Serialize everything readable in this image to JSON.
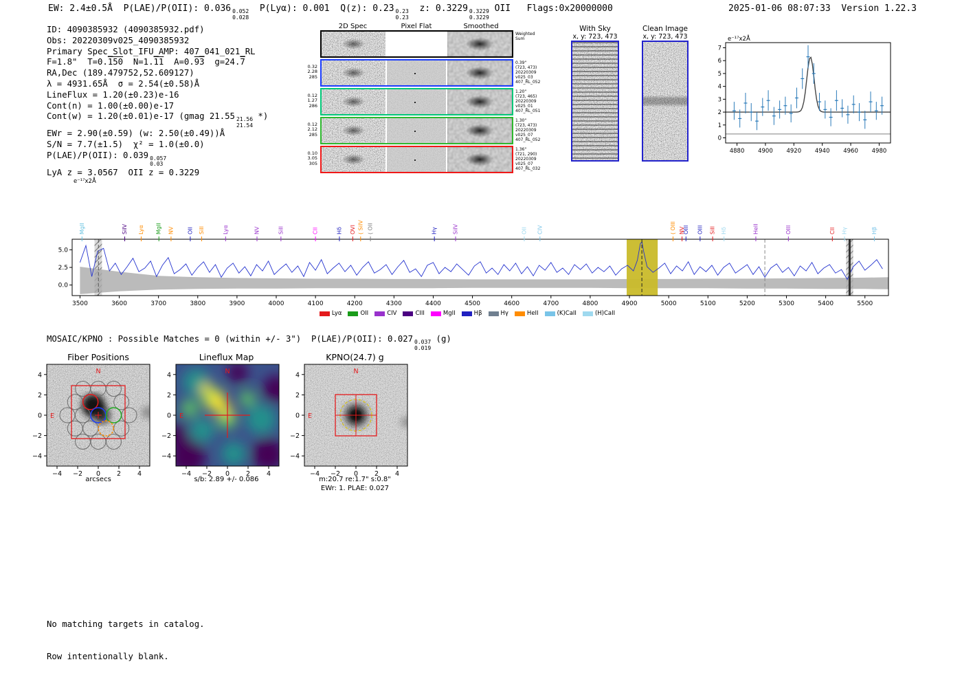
{
  "header": {
    "left_segments": [
      {
        "t": "EW: 2.4±0.5Å  P(LAE)/P(OII): 0.036"
      },
      {
        "sup": "0.052",
        "sub": "0.028"
      },
      {
        "t": "  P(Lyα): 0.001  Q(z): 0.23"
      },
      {
        "sup": "0.23",
        "sub": "0.23"
      },
      {
        "t": "  z: 0.3229"
      },
      {
        "sup": "0.3229",
        "sub": "0.3229"
      },
      {
        "t": " OII   Flags:0x20000000"
      }
    ],
    "datetime": "2025-01-06 08:07:33",
    "version": "Version 1.22.3"
  },
  "info": {
    "lines": [
      [
        {
          "t": "ID: 4090385932 (4090385932.pdf)"
        }
      ],
      [
        {
          "t": "Obs: 20220309v025_4090385932"
        }
      ],
      [
        {
          "t": "Primary Spec_Slot_IFU_AMP: 407_041_021_RL"
        }
      ],
      [
        {
          "t": "F=1.8\"  T=0."
        },
        {
          "t": "150",
          "over": true
        },
        {
          "t": "  N=1."
        },
        {
          "t": "11",
          "over": true
        },
        {
          "t": "  A=0."
        },
        {
          "t": "93",
          "over": true
        },
        {
          "t": "  g=24."
        },
        {
          "t": "7",
          "over": true
        }
      ],
      [
        {
          "t": "RA,Dec (189.479752,52.609127)"
        }
      ],
      [
        {
          "t": "λ = 4931.65Å  σ = 2.54(±0.58)Å"
        }
      ],
      [
        {
          "t": "LineFlux = 1.20(±0.23)e-16"
        }
      ],
      [
        {
          "t": "Cont(n) = 1.00(±0.00)e-17"
        }
      ],
      [
        {
          "t": "Cont(w) = 1.20(±0.01)e-17 (gmag 21.55"
        },
        {
          "sup": "21.56",
          "sub": "21.54"
        },
        {
          "t": " *)"
        }
      ],
      [
        {
          "t": "EWr = 2.90(±0.59) (w: 2.50(±0.49))Å"
        }
      ],
      [
        {
          "t": "S/N = 7.7(±1.5)  χ² = 1.0(±0.0)"
        }
      ],
      [
        {
          "t": "P(LAE)/P(OII): 0.039"
        },
        {
          "sup": "0.057",
          "sub": "0.03"
        }
      ],
      [
        {
          "t": "LyA z = 3.0567  OII z = 0.3229"
        }
      ]
    ]
  },
  "cutouts": {
    "col_headers": [
      "2D Spec",
      "Pixel Flat",
      "Smoothed"
    ],
    "rows": [
      {
        "border": "#000000",
        "left": [],
        "right": [
          "Weighted",
          "Sum"
        ],
        "pixelflat": false
      },
      {
        "border": "#1a3cff",
        "left": [
          "0.32",
          "2.28",
          "285"
        ],
        "right": [
          "0.39\"",
          "(723, 473)",
          "20220309",
          "v025_03",
          "407_RL_052"
        ],
        "pixelflat": true
      },
      {
        "border": "#00c878",
        "left": [
          "0.12",
          "1.27",
          "286"
        ],
        "right": [
          "1.20\"",
          "(723, 465)",
          "20220309",
          "v025_01",
          "407_RL_051"
        ],
        "pixelflat": true
      },
      {
        "border": "#2eb82e",
        "left": [
          "0.12",
          "2.12",
          "285"
        ],
        "right": [
          "1.30\"",
          "(723, 473)",
          "20220309",
          "v025_07",
          "407_RL_052"
        ],
        "pixelflat": true
      },
      {
        "border": "#f01818",
        "left": [
          "0.10",
          "3.05",
          "305"
        ],
        "right": [
          "1.36\"",
          "(721, 290)",
          "20220309",
          "v025_07",
          "407_RL_032"
        ],
        "pixelflat": true
      }
    ]
  },
  "sky_panels": [
    {
      "title": "With Sky",
      "subtitle": "x, y: 723, 473"
    },
    {
      "title": "Clean Image",
      "subtitle": "x, y: 723, 473"
    }
  ],
  "mosaic_line_segments": [
    {
      "t": "MOSAIC/KPNO : Possible Matches = 0 (within +/- 3\")  P(LAE)/P(OII): 0.027"
    },
    {
      "sup": "0.037",
      "sub": "0.019"
    },
    {
      "t": " (g)"
    }
  ],
  "panels": {
    "fiber": {
      "title": "Fiber Positions",
      "xlabel": "arcsecs",
      "xticks": [
        -4,
        -2,
        0,
        2,
        4
      ],
      "yticks": [
        -4,
        -2,
        0,
        2,
        4
      ],
      "north": "N",
      "east": "E"
    },
    "lineflux": {
      "title": "Lineflux Map",
      "xlabel": "s/b: 2.89 +/- 0.086",
      "xticks": [
        -4,
        -2,
        0,
        2,
        4
      ],
      "yticks": [
        -4,
        -2,
        0,
        2,
        4
      ],
      "north": "N",
      "east": "E"
    },
    "kpno": {
      "title": "KPNO(24.7) g",
      "xlabel": "m:20.7 re:1.7\" s:0.8\"",
      "xlabel2": "EWr: 1. PLAE: 0.027",
      "xticks": [
        -4,
        -2,
        0,
        2,
        4
      ],
      "yticks": [
        -4,
        -2,
        0,
        2,
        4
      ],
      "north": "N",
      "east": "E"
    }
  },
  "footer": {
    "line1": "No matching targets in catalog.",
    "line2": "Row intentionally blank."
  },
  "chart_data": [
    {
      "type": "line",
      "title": "Full 1D spectrum",
      "ylabel_display": "e⁻¹⁷x2Å",
      "xlim": [
        3480,
        5560
      ],
      "ylim": [
        -1.5,
        6.5
      ],
      "xticks": [
        3500,
        3600,
        3700,
        3800,
        3900,
        4000,
        4100,
        4200,
        4300,
        4400,
        4500,
        4600,
        4700,
        4800,
        4900,
        5000,
        5100,
        5200,
        5300,
        5400,
        5500
      ],
      "yticks": [
        0.0,
        2.5,
        5.0
      ],
      "line_color": "#2433cf",
      "x": [
        3500,
        3515,
        3530,
        3545,
        3560,
        3575,
        3590,
        3605,
        3620,
        3635,
        3650,
        3665,
        3680,
        3695,
        3710,
        3725,
        3740,
        3755,
        3770,
        3785,
        3800,
        3815,
        3830,
        3845,
        3860,
        3875,
        3890,
        3905,
        3920,
        3935,
        3950,
        3965,
        3980,
        3995,
        4010,
        4025,
        4040,
        4055,
        4070,
        4085,
        4100,
        4115,
        4130,
        4145,
        4160,
        4175,
        4190,
        4205,
        4220,
        4235,
        4250,
        4265,
        4280,
        4295,
        4310,
        4325,
        4340,
        4355,
        4370,
        4385,
        4400,
        4415,
        4430,
        4445,
        4460,
        4475,
        4490,
        4505,
        4520,
        4535,
        4550,
        4565,
        4580,
        4595,
        4610,
        4625,
        4640,
        4655,
        4670,
        4685,
        4700,
        4715,
        4730,
        4745,
        4760,
        4775,
        4790,
        4805,
        4820,
        4835,
        4850,
        4865,
        4880,
        4895,
        4910,
        4920,
        4928,
        4932,
        4936,
        4945,
        4960,
        4975,
        4990,
        5005,
        5020,
        5035,
        5050,
        5065,
        5080,
        5095,
        5110,
        5125,
        5140,
        5155,
        5170,
        5185,
        5200,
        5215,
        5230,
        5245,
        5260,
        5275,
        5290,
        5305,
        5320,
        5335,
        5350,
        5365,
        5380,
        5395,
        5410,
        5425,
        5440,
        5455,
        5470,
        5485,
        5500,
        5515,
        5530,
        5545
      ],
      "y": [
        3.2,
        5.6,
        1.2,
        4.8,
        5.2,
        2.0,
        3.1,
        1.5,
        2.6,
        3.8,
        1.9,
        2.4,
        3.4,
        1.2,
        2.8,
        3.9,
        1.6,
        2.2,
        3.0,
        1.4,
        2.5,
        3.3,
        1.8,
        2.9,
        1.1,
        2.4,
        3.1,
        1.7,
        2.6,
        1.3,
        2.9,
        2.0,
        3.4,
        1.5,
        2.3,
        3.0,
        1.8,
        2.7,
        1.2,
        3.2,
        2.1,
        3.6,
        1.6,
        2.4,
        3.1,
        1.9,
        2.8,
        1.4,
        2.5,
        3.3,
        1.7,
        2.2,
        2.9,
        1.5,
        2.6,
        3.5,
        1.8,
        2.3,
        1.2,
        2.8,
        3.2,
        1.6,
        2.5,
        1.9,
        3.0,
        2.2,
        1.4,
        2.7,
        3.3,
        1.7,
        2.4,
        1.5,
        2.9,
        2.0,
        3.1,
        1.6,
        2.6,
        1.3,
        2.8,
        2.1,
        3.2,
        1.8,
        2.4,
        1.5,
        2.9,
        2.2,
        3.0,
        1.7,
        2.5,
        1.9,
        2.7,
        1.4,
        2.3,
        2.8,
        2.0,
        3.5,
        5.9,
        6.1,
        4.8,
        2.6,
        1.8,
        2.4,
        3.1,
        1.6,
        2.7,
        2.0,
        3.3,
        1.5,
        2.6,
        1.9,
        2.8,
        1.4,
        2.5,
        3.1,
        1.7,
        2.3,
        2.9,
        1.5,
        2.6,
        1.1,
        2.4,
        3.0,
        1.8,
        2.5,
        1.3,
        2.7,
        2.0,
        3.2,
        1.6,
        2.4,
        2.9,
        1.7,
        2.2,
        0.8,
        2.6,
        3.4,
        2.1,
        2.8,
        3.6,
        2.3
      ],
      "error_band": {
        "x": [
          3500,
          3600,
          3700,
          3800,
          3900,
          4000,
          4100,
          4200,
          4300,
          4400,
          4500,
          4600,
          4700,
          4800,
          4900,
          5000,
          5100,
          5200,
          5300,
          5400,
          5500,
          5560
        ],
        "top": [
          2.6,
          1.9,
          1.3,
          1.1,
          1.0,
          0.95,
          0.9,
          0.9,
          0.85,
          0.85,
          0.8,
          0.8,
          0.8,
          0.8,
          0.85,
          0.85,
          0.9,
          0.9,
          0.95,
          1.0,
          1.05,
          1.1
        ],
        "bottom": [
          -1.3,
          -0.9,
          -0.65,
          -0.55,
          -0.5,
          -0.5,
          -0.45,
          -0.45,
          -0.45,
          -0.45,
          -0.4,
          -0.4,
          -0.4,
          -0.4,
          -0.45,
          -0.45,
          -0.45,
          -0.5,
          -0.5,
          -0.55,
          -0.55,
          -0.6
        ]
      },
      "highlight_region": {
        "x0": 4893,
        "x1": 4972,
        "color": "#c9bb2a",
        "opacity": 0.95
      },
      "hatch_regions": [
        [
          3537,
          3556
        ],
        [
          5452,
          5470
        ]
      ],
      "dashed_lines": [
        {
          "x": 3547,
          "color": "#555555"
        },
        {
          "x": 4931.65,
          "color": "#222222"
        },
        {
          "x": 5245,
          "color": "#888888"
        }
      ],
      "solid_lines": [
        {
          "x": 5461,
          "color": "#333333",
          "width": 3
        }
      ],
      "line_labels": [
        {
          "label": "MgII",
          "wave": 3505,
          "color": "#66c2e0"
        },
        {
          "label": "SiIV",
          "wave": 3614,
          "color": "#4b0082"
        },
        {
          "label": "Lyα",
          "wave": 3656,
          "color": "#ff8c00"
        },
        {
          "label": "MgII",
          "wave": 3701,
          "color": "#1a9c1a"
        },
        {
          "label": "NV",
          "wave": 3732,
          "color": "#ff8c00"
        },
        {
          "label": "OII",
          "wave": 3781,
          "color": "#2020c0"
        },
        {
          "label": "SiII",
          "wave": 3810,
          "color": "#ff8c00"
        },
        {
          "label": "Lyα",
          "wave": 3871,
          "color": "#9932cc"
        },
        {
          "label": "NV",
          "wave": 3951,
          "color": "#9932cc"
        },
        {
          "label": "SiII",
          "wave": 4012,
          "color": "#9932cc"
        },
        {
          "label": "CII",
          "wave": 4100,
          "color": "#ff00ff"
        },
        {
          "label": "Hδ",
          "wave": 4161,
          "color": "#2020c0"
        },
        {
          "label": "OVI",
          "wave": 4195,
          "color": "#e41a1c"
        },
        {
          "label": "( SiIV",
          "wave": 4215,
          "color": "#ff8c00"
        },
        {
          "label": "( OII",
          "wave": 4240,
          "color": "#808080"
        },
        {
          "label": "Hγ",
          "wave": 4403,
          "color": "#2020c0"
        },
        {
          "label": "SiIV",
          "wave": 4457,
          "color": "#9932cc"
        },
        {
          "label": "OII",
          "wave": 4632,
          "color": "#9fd9ef"
        },
        {
          "label": "CIV",
          "wave": 4672,
          "color": "#79c4e8"
        },
        {
          "label": "( OIII",
          "wave": 5011,
          "color": "#ff8c00"
        },
        {
          "label": "NV",
          "wave": 5034,
          "color": "#e41a1c"
        },
        {
          "label": "OIII",
          "wave": 5044,
          "color": "#2020c0"
        },
        {
          "label": "OIII",
          "wave": 5080,
          "color": "#2020c0"
        },
        {
          "label": "SiII",
          "wave": 5112,
          "color": "#e41a1c"
        },
        {
          "label": "Hδ",
          "wave": 5141,
          "color": "#9fd9ef"
        },
        {
          "label": "HeII",
          "wave": 5222,
          "color": "#9932cc"
        },
        {
          "label": "OIII",
          "wave": 5305,
          "color": "#9932cc"
        },
        {
          "label": "CII",
          "wave": 5417,
          "color": "#e41a1c"
        },
        {
          "label": "Hγ",
          "wave": 5448,
          "color": "#9fd9ef"
        },
        {
          "label": "Hβ",
          "wave": 5524,
          "color": "#79c4e8"
        }
      ],
      "legend": [
        {
          "label": "Lyα",
          "color": "#e41a1c"
        },
        {
          "label": "OII",
          "color": "#1a9c1a"
        },
        {
          "label": "CIV",
          "color": "#9932cc"
        },
        {
          "label": "CIII",
          "color": "#4b0082"
        },
        {
          "label": "MgII",
          "color": "#ff00ff"
        },
        {
          "label": "Hβ",
          "color": "#2020c0"
        },
        {
          "label": "Hγ",
          "color": "#708090"
        },
        {
          "label": "HeII",
          "color": "#ff8c00"
        },
        {
          "label": "(K)CaII",
          "color": "#79c4e8"
        },
        {
          "label": "(H)CaII",
          "color": "#9fd9ef"
        }
      ]
    },
    {
      "type": "scatter",
      "title": "Emission line fit zoom",
      "ylabel_display": "e⁻¹⁷x2Å",
      "xlim": [
        4872,
        4988
      ],
      "ylim": [
        -0.4,
        7.4
      ],
      "xticks": [
        4880,
        4900,
        4920,
        4940,
        4960,
        4980
      ],
      "yticks": [
        0,
        1,
        2,
        3,
        4,
        5,
        6,
        7
      ],
      "marker_color": "#2a7ab9",
      "floor_line_y": 0.3,
      "points": [
        [
          4878,
          2.1,
          0.7
        ],
        [
          4882,
          1.5,
          0.7
        ],
        [
          4886,
          2.7,
          0.8
        ],
        [
          4890,
          2.0,
          0.7
        ],
        [
          4894,
          1.3,
          0.7
        ],
        [
          4898,
          2.4,
          0.7
        ],
        [
          4902,
          2.9,
          0.8
        ],
        [
          4906,
          1.7,
          0.7
        ],
        [
          4910,
          2.2,
          0.7
        ],
        [
          4914,
          2.5,
          0.7
        ],
        [
          4918,
          1.9,
          0.7
        ],
        [
          4922,
          3.1,
          0.8
        ],
        [
          4926,
          4.6,
          0.8
        ],
        [
          4930,
          6.3,
          0.9
        ],
        [
          4934,
          5.0,
          0.8
        ],
        [
          4938,
          2.8,
          0.7
        ],
        [
          4942,
          2.2,
          0.7
        ],
        [
          4946,
          1.6,
          0.7
        ],
        [
          4950,
          2.9,
          0.8
        ],
        [
          4954,
          2.3,
          0.7
        ],
        [
          4958,
          1.8,
          0.7
        ],
        [
          4962,
          2.6,
          0.7
        ],
        [
          4966,
          2.0,
          0.7
        ],
        [
          4970,
          1.4,
          0.7
        ],
        [
          4974,
          2.8,
          0.8
        ],
        [
          4978,
          2.1,
          0.7
        ],
        [
          4982,
          2.5,
          0.7
        ]
      ],
      "fit": {
        "type": "gaussian",
        "mu": 4931.65,
        "sigma": 2.54,
        "amplitude": 4.3,
        "continuum": 2.0,
        "color": "#444444"
      }
    }
  ]
}
